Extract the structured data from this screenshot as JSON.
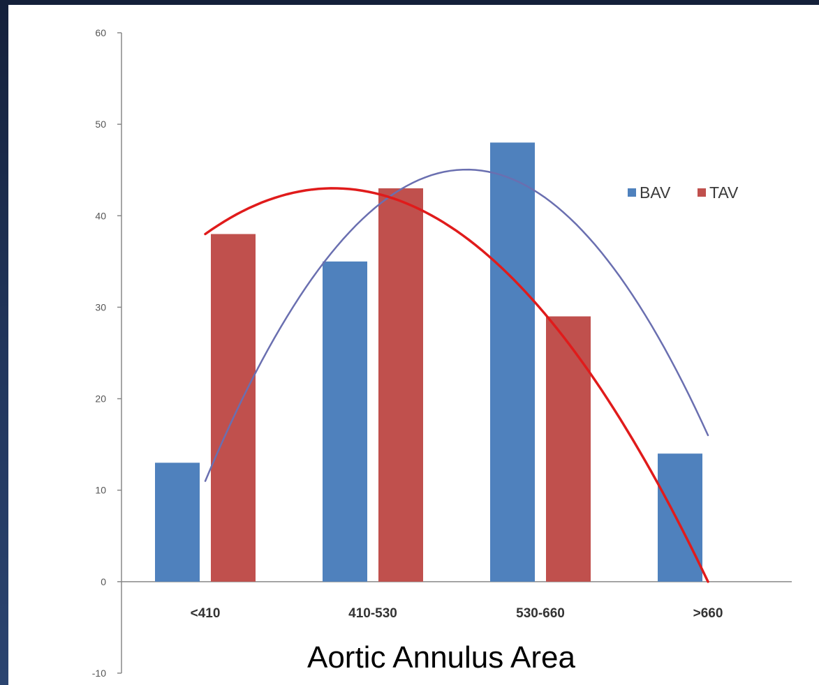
{
  "chart_data": {
    "type": "bar",
    "title": "",
    "xlabel": "Aortic Annulus Area",
    "ylabel": "",
    "ylim": [
      -10,
      60
    ],
    "yticks": [
      -10,
      0,
      10,
      20,
      30,
      40,
      50,
      60
    ],
    "categories": [
      "<410",
      "410-530",
      "530-660",
      ">660"
    ],
    "series": [
      {
        "name": "BAV",
        "color": "#4f81bd",
        "values": [
          13,
          35,
          48,
          14
        ]
      },
      {
        "name": "TAV",
        "color": "#c0504d",
        "values": [
          38,
          43,
          29,
          null
        ]
      }
    ],
    "trendlines": [
      {
        "series": "BAV",
        "type": "polynomial-2",
        "color": "#6a6fb0",
        "x": [
          1,
          2.5,
          4
        ],
        "y": [
          11,
          45,
          16
        ]
      },
      {
        "series": "TAV",
        "type": "polynomial-2",
        "color": "#e01b1b",
        "x": [
          1,
          1.75,
          4
        ],
        "y": [
          38,
          43,
          0
        ]
      }
    ],
    "legend": {
      "position": "top-right",
      "entries": [
        "BAV",
        "TAV"
      ]
    },
    "grid": false
  }
}
